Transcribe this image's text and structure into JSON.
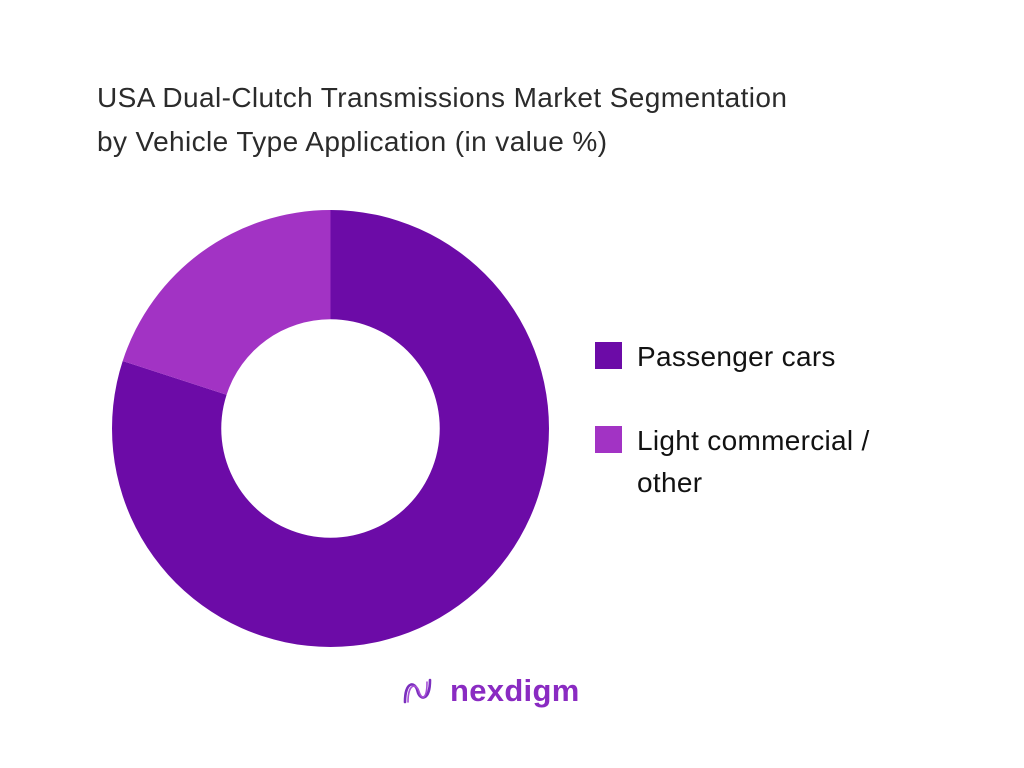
{
  "title": {
    "line1": "USA Dual-Clutch Transmissions Market Segmentation",
    "line2": "by Vehicle Type Application (in value %)"
  },
  "chart_data": {
    "type": "pie",
    "subtype": "donut",
    "title": "USA Dual-Clutch Transmissions Market Segmentation by Vehicle Type Application (in value %)",
    "categories": [
      "Passenger cars",
      "Light commercial / other"
    ],
    "values": [
      80,
      20
    ],
    "colors": [
      "#6C0BA7",
      "#A233C4"
    ],
    "start_angle_deg": 0,
    "direction": "clockwise",
    "inner_radius_ratio": 0.5,
    "legend_position": "right",
    "data_labels": false
  },
  "legend": {
    "items": [
      {
        "label": "Passenger cars",
        "color": "#6C0BA7"
      },
      {
        "label": "Light commercial /\nother",
        "color": "#A233C4"
      }
    ]
  },
  "logo": {
    "text": "nexdigm",
    "color": "#8A2BC2"
  },
  "theme": {
    "background": "#FFFFFF",
    "title_color": "#2B2B2B",
    "legend_text_color": "#121212"
  }
}
